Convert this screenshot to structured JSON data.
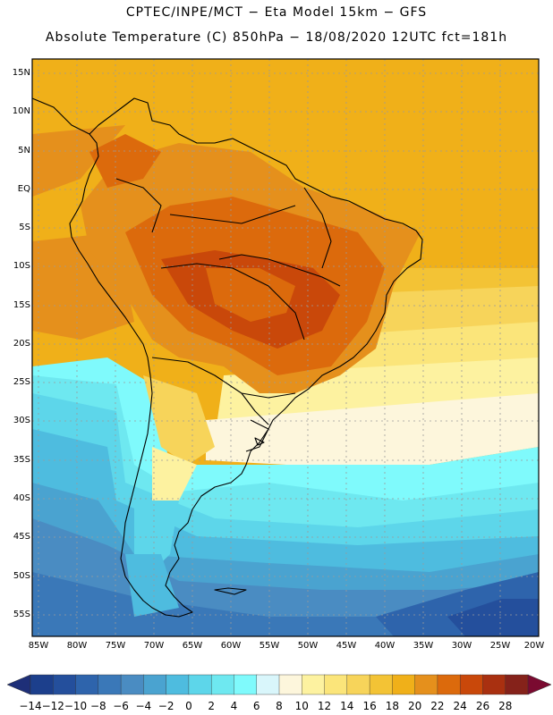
{
  "title_line1": "CPTEC/INPE/MCT −  Eta Model 15km − GFS",
  "title_line2": "Absolute Temperature (C) 850hPa − 18/08/2020 12UTC fct=181h",
  "lat_labels": [
    "15N",
    "10N",
    "5N",
    "EQ",
    "5S",
    "10S",
    "15S",
    "20S",
    "25S",
    "30S",
    "35S",
    "40S",
    "45S",
    "50S",
    "55S"
  ],
  "lon_labels": [
    "85W",
    "80W",
    "75W",
    "70W",
    "65W",
    "60W",
    "55W",
    "50W",
    "45W",
    "40W",
    "35W",
    "30W",
    "25W",
    "20W"
  ],
  "colorbar": {
    "labels": [
      "-14",
      "-12",
      "-10",
      "-8",
      "-6",
      "-4",
      "-2",
      "0",
      "2",
      "4",
      "6",
      "8",
      "10",
      "12",
      "14",
      "16",
      "18",
      "20",
      "22",
      "24",
      "26",
      "28"
    ],
    "colors": [
      "#1c3f8c",
      "#244f9c",
      "#2e64ac",
      "#3a78b8",
      "#4a8cc2",
      "#4aa3d0",
      "#4ebcdf",
      "#5dd6ea",
      "#6ee8f0",
      "#7ffafc",
      "#d9f6fb",
      "#fdf6dc",
      "#fdf2a0",
      "#fbe57a",
      "#f7d45a",
      "#f3c335",
      "#f0b019",
      "#e5901c",
      "#dc6a0c",
      "#c9480a",
      "#a93010",
      "#85221a"
    ],
    "low_color": "#1e2f78",
    "high_color": "#7a0a30"
  },
  "map": {
    "region": "South America",
    "variable": "Absolute Temperature (C)",
    "level": "850hPa"
  }
}
